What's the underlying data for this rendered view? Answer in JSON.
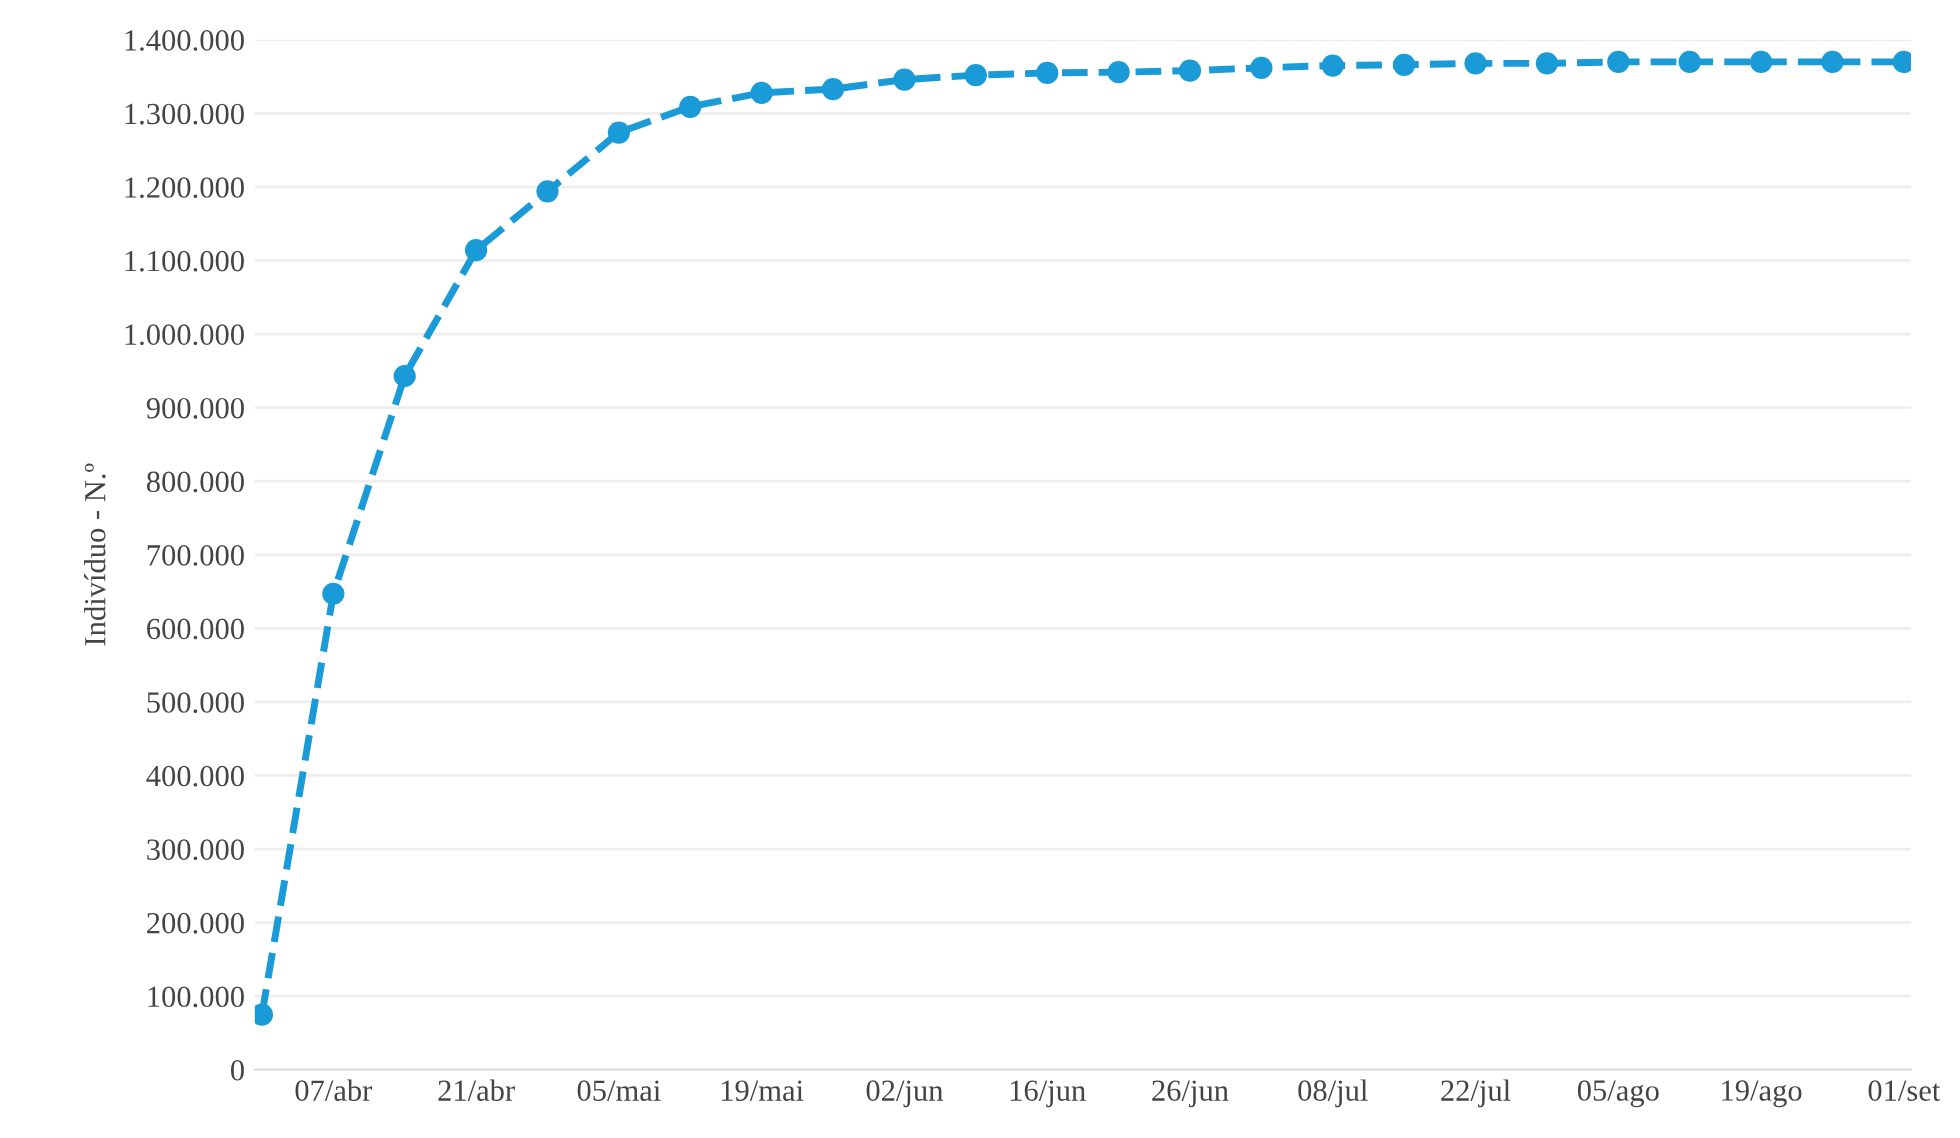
{
  "chart_data": {
    "type": "line",
    "ylabel": "Indivíduo - N.º",
    "categories": [
      null,
      "07/abr",
      null,
      "21/abr",
      null,
      "05/mai",
      null,
      "19/mai",
      null,
      "02/jun",
      null,
      "16/jun",
      null,
      "26/jun",
      null,
      "08/jul",
      null,
      "22/jul",
      null,
      "05/ago",
      null,
      "19/ago",
      null,
      "01/set"
    ],
    "series": [
      {
        "color": "#1a9bd7",
        "values": [
          75000,
          647000,
          943000,
          1114000,
          1194000,
          1274000,
          1309000,
          1328000,
          1333000,
          1346000,
          1352000,
          1355000,
          1356000,
          1358000,
          1362000,
          1365000,
          1366000,
          1368000,
          1368000,
          1370000,
          1370000,
          1370000,
          1370000,
          1370000
        ]
      }
    ],
    "ylim": [
      0,
      1400000
    ],
    "yticks": [
      {
        "value": 0,
        "label": "0"
      },
      {
        "value": 100000,
        "label": "100.000"
      },
      {
        "value": 200000,
        "label": "200.000"
      },
      {
        "value": 300000,
        "label": "300.000"
      },
      {
        "value": 400000,
        "label": "400.000"
      },
      {
        "value": 500000,
        "label": "500.000"
      },
      {
        "value": 600000,
        "label": "600.000"
      },
      {
        "value": 700000,
        "label": "700.000"
      },
      {
        "value": 800000,
        "label": "800.000"
      },
      {
        "value": 900000,
        "label": "900.000"
      },
      {
        "value": 1000000,
        "label": "1.000.000"
      },
      {
        "value": 1100000,
        "label": "1.100.000"
      },
      {
        "value": 1200000,
        "label": "1.200.000"
      },
      {
        "value": 1300000,
        "label": "1.300.000"
      },
      {
        "value": 1400000,
        "label": "1.400.000"
      }
    ],
    "grid": "y",
    "marker": "circle",
    "line_style": "dashed"
  }
}
